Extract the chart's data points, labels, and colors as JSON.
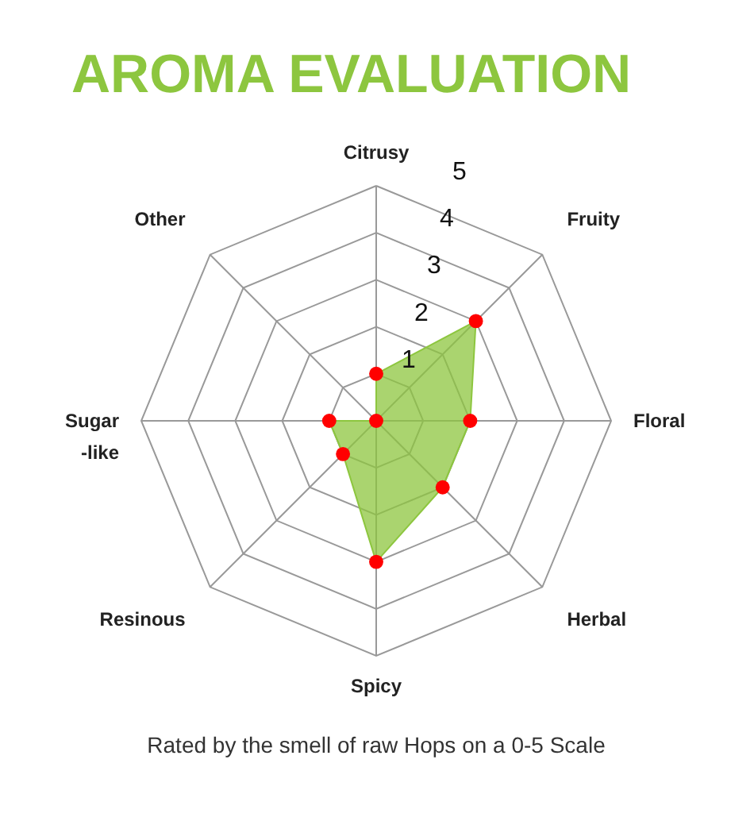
{
  "chart_data": {
    "type": "radar",
    "title": "AROMA EVALUATION",
    "categories": [
      "Citrusy",
      "Fruity",
      "Floral",
      "Herbal",
      "Spicy",
      "Resinous",
      "Sugar\n-like",
      "Other"
    ],
    "series": [
      {
        "color": "#8dc63f",
        "colors": [
          "#ff0000",
          "#ff0000",
          "#ff0000",
          "#ff0000",
          "#ff0000",
          "#ff0000",
          "#ff0000",
          "#ff0000"
        ],
        "values": [
          1,
          3,
          2,
          2,
          3,
          1,
          1,
          0
        ]
      }
    ],
    "ylim": [
      0,
      5
    ],
    "yticks": [
      1,
      2,
      3,
      4,
      5
    ],
    "marker": "circle",
    "grid": true,
    "annotations": [
      "Rated by the smell of raw Hops on a 0-5 Scale"
    ]
  }
}
